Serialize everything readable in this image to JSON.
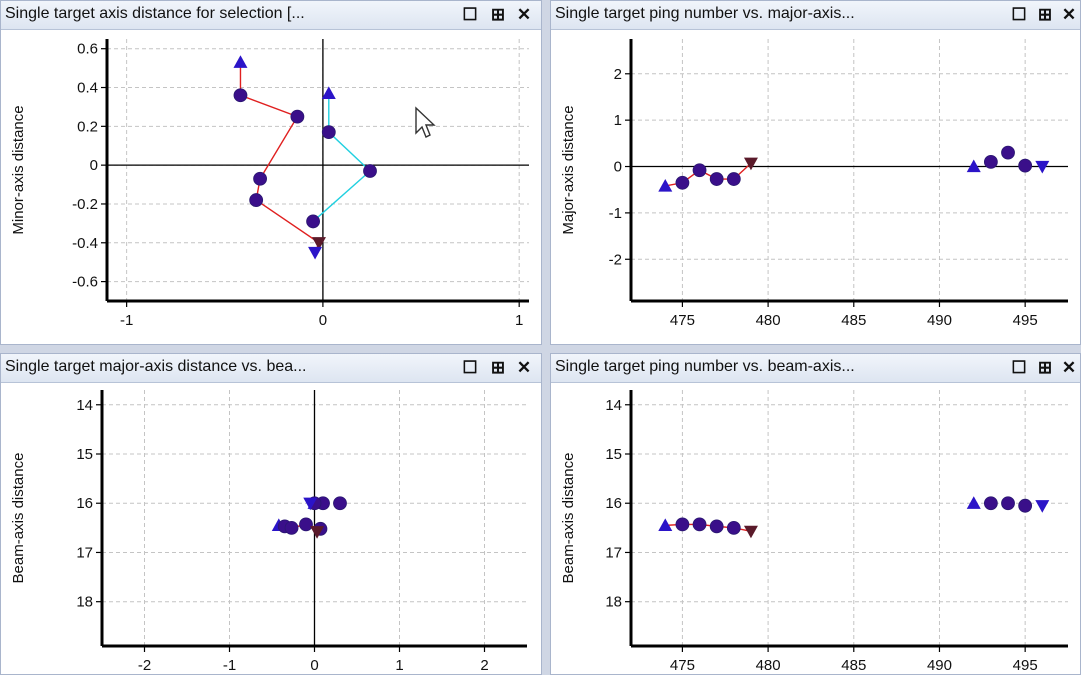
{
  "panels": [
    {
      "title": "Single target axis distance for selection [...",
      "restore_icon": "restore-icon",
      "pin_icon": "pin-icon",
      "close_icon": "close-icon"
    },
    {
      "title": "Single target ping number vs. major-axis...",
      "restore_icon": "restore-icon",
      "pin_icon": "pin-icon",
      "close_icon": "close-icon"
    },
    {
      "title": "Single target major-axis distance vs. bea...",
      "restore_icon": "restore-icon",
      "pin_icon": "pin-icon",
      "close_icon": "close-icon"
    },
    {
      "title": "Single target ping number vs. beam-axis...",
      "restore_icon": "restore-icon",
      "pin_icon": "pin-icon",
      "close_icon": "close-icon"
    }
  ],
  "colors": {
    "marker": "#2b14c8",
    "marker_circle": "#3a0f8a",
    "down_dark": "#5a1a2a",
    "red_line": "#e02020",
    "cyan_line": "#20d0e0"
  },
  "chart_data": [
    {
      "type": "scatter",
      "title": "",
      "xlabel": "",
      "ylabel": "Minor-axis distance",
      "xlim": [
        -1.1,
        1.05
      ],
      "ylim": [
        -0.7,
        0.65
      ],
      "xticks": [
        -1,
        0,
        1
      ],
      "yticks": [
        0.6,
        0.4,
        0.2,
        0,
        -0.2,
        -0.4,
        -0.6
      ],
      "xtick_labels": [
        "-1",
        "0",
        "1"
      ],
      "ytick_labels": [
        "0.6",
        "0.4",
        "0.2",
        "0",
        "-0.2",
        "-0.4",
        "-0.6"
      ],
      "grid": true,
      "zero_lines": true,
      "series": [
        {
          "points": [
            [
              -0.42,
              0.53,
              "up"
            ],
            [
              -0.42,
              0.36,
              "circle"
            ],
            [
              -0.13,
              0.25,
              "circle"
            ],
            [
              -0.32,
              -0.07,
              "circle"
            ],
            [
              -0.34,
              -0.18,
              "circle"
            ],
            [
              -0.02,
              -0.4,
              "down_dark"
            ],
            [
              -0.04,
              -0.45,
              "down"
            ]
          ],
          "line": "red"
        },
        {
          "points": [
            [
              0.03,
              0.37,
              "up"
            ],
            [
              0.03,
              0.17,
              "circle"
            ],
            [
              0.24,
              -0.03,
              "circle"
            ],
            [
              -0.05,
              -0.29,
              "circle"
            ]
          ],
          "line": "cyan"
        }
      ]
    },
    {
      "type": "scatter",
      "title": "",
      "xlabel": "",
      "ylabel": "Major-axis distance",
      "xlim": [
        472,
        497.5
      ],
      "ylim": [
        -2.9,
        2.75
      ],
      "xticks": [
        475,
        480,
        485,
        490,
        495
      ],
      "yticks": [
        2,
        1,
        0,
        -1,
        -2
      ],
      "xtick_labels": [
        "475",
        "480",
        "485",
        "490",
        "495"
      ],
      "ytick_labels": [
        "2",
        "1",
        "0",
        "-1",
        "-2"
      ],
      "grid": true,
      "zero_lines": true,
      "series": [
        {
          "points": [
            [
              474,
              -0.42,
              "up"
            ],
            [
              475,
              -0.35,
              "circle"
            ],
            [
              476,
              -0.08,
              "circle"
            ],
            [
              477,
              -0.27,
              "circle"
            ],
            [
              478,
              -0.27,
              "circle"
            ],
            [
              479,
              0.07,
              "down_dark"
            ]
          ],
          "line": "red"
        },
        {
          "points": [
            [
              492,
              0.0,
              "up"
            ],
            [
              493,
              0.1,
              "circle"
            ],
            [
              494,
              0.3,
              "circle"
            ],
            [
              495,
              0.02,
              "circle"
            ],
            [
              496,
              0.0,
              "down"
            ]
          ],
          "line": "none"
        }
      ]
    },
    {
      "type": "scatter",
      "title": "",
      "xlabel": "",
      "ylabel": "Beam-axis distance",
      "xlim": [
        -2.5,
        2.5
      ],
      "ylim": [
        13.7,
        18.9
      ],
      "xticks": [
        -2,
        -1,
        0,
        1,
        2
      ],
      "yticks": [
        14,
        15,
        16,
        17,
        18
      ],
      "xtick_labels": [
        "-2",
        "-1",
        "0",
        "1",
        "2"
      ],
      "ytick_labels": [
        "14",
        "15",
        "16",
        "17",
        "18"
      ],
      "y_inverted": true,
      "grid": true,
      "zero_lines": true,
      "series": [
        {
          "points": [
            [
              -0.42,
              16.45,
              "up"
            ],
            [
              -0.35,
              16.47,
              "circle"
            ],
            [
              -0.27,
              16.5,
              "circle"
            ],
            [
              -0.1,
              16.43,
              "circle"
            ],
            [
              0.07,
              16.52,
              "circle"
            ],
            [
              0.03,
              16.58,
              "down_dark"
            ]
          ],
          "line": "red"
        },
        {
          "points": [
            [
              0.0,
              16.0,
              "up"
            ],
            [
              0.1,
              16.0,
              "circle"
            ],
            [
              0.3,
              16.0,
              "circle"
            ],
            [
              0.0,
              16.0,
              "circle"
            ],
            [
              -0.05,
              16.0,
              "down"
            ]
          ],
          "line": "none"
        }
      ]
    },
    {
      "type": "scatter",
      "title": "",
      "xlabel": "",
      "ylabel": "Beam-axis distance",
      "xlim": [
        472,
        497.5
      ],
      "ylim": [
        13.7,
        18.9
      ],
      "xticks": [
        475,
        480,
        485,
        490,
        495
      ],
      "yticks": [
        14,
        15,
        16,
        17,
        18
      ],
      "xtick_labels": [
        "475",
        "480",
        "485",
        "490",
        "495"
      ],
      "ytick_labels": [
        "14",
        "15",
        "16",
        "17",
        "18"
      ],
      "y_inverted": true,
      "grid": true,
      "zero_lines": false,
      "series": [
        {
          "points": [
            [
              474,
              16.45,
              "up"
            ],
            [
              475,
              16.43,
              "circle"
            ],
            [
              476,
              16.43,
              "circle"
            ],
            [
              477,
              16.47,
              "circle"
            ],
            [
              478,
              16.5,
              "circle"
            ],
            [
              479,
              16.57,
              "down_dark"
            ]
          ],
          "line": "red"
        },
        {
          "points": [
            [
              492,
              16.0,
              "up"
            ],
            [
              493,
              16.0,
              "circle"
            ],
            [
              494,
              16.0,
              "circle"
            ],
            [
              495,
              16.05,
              "circle"
            ],
            [
              496,
              16.05,
              "down"
            ]
          ],
          "line": "none"
        }
      ]
    }
  ]
}
